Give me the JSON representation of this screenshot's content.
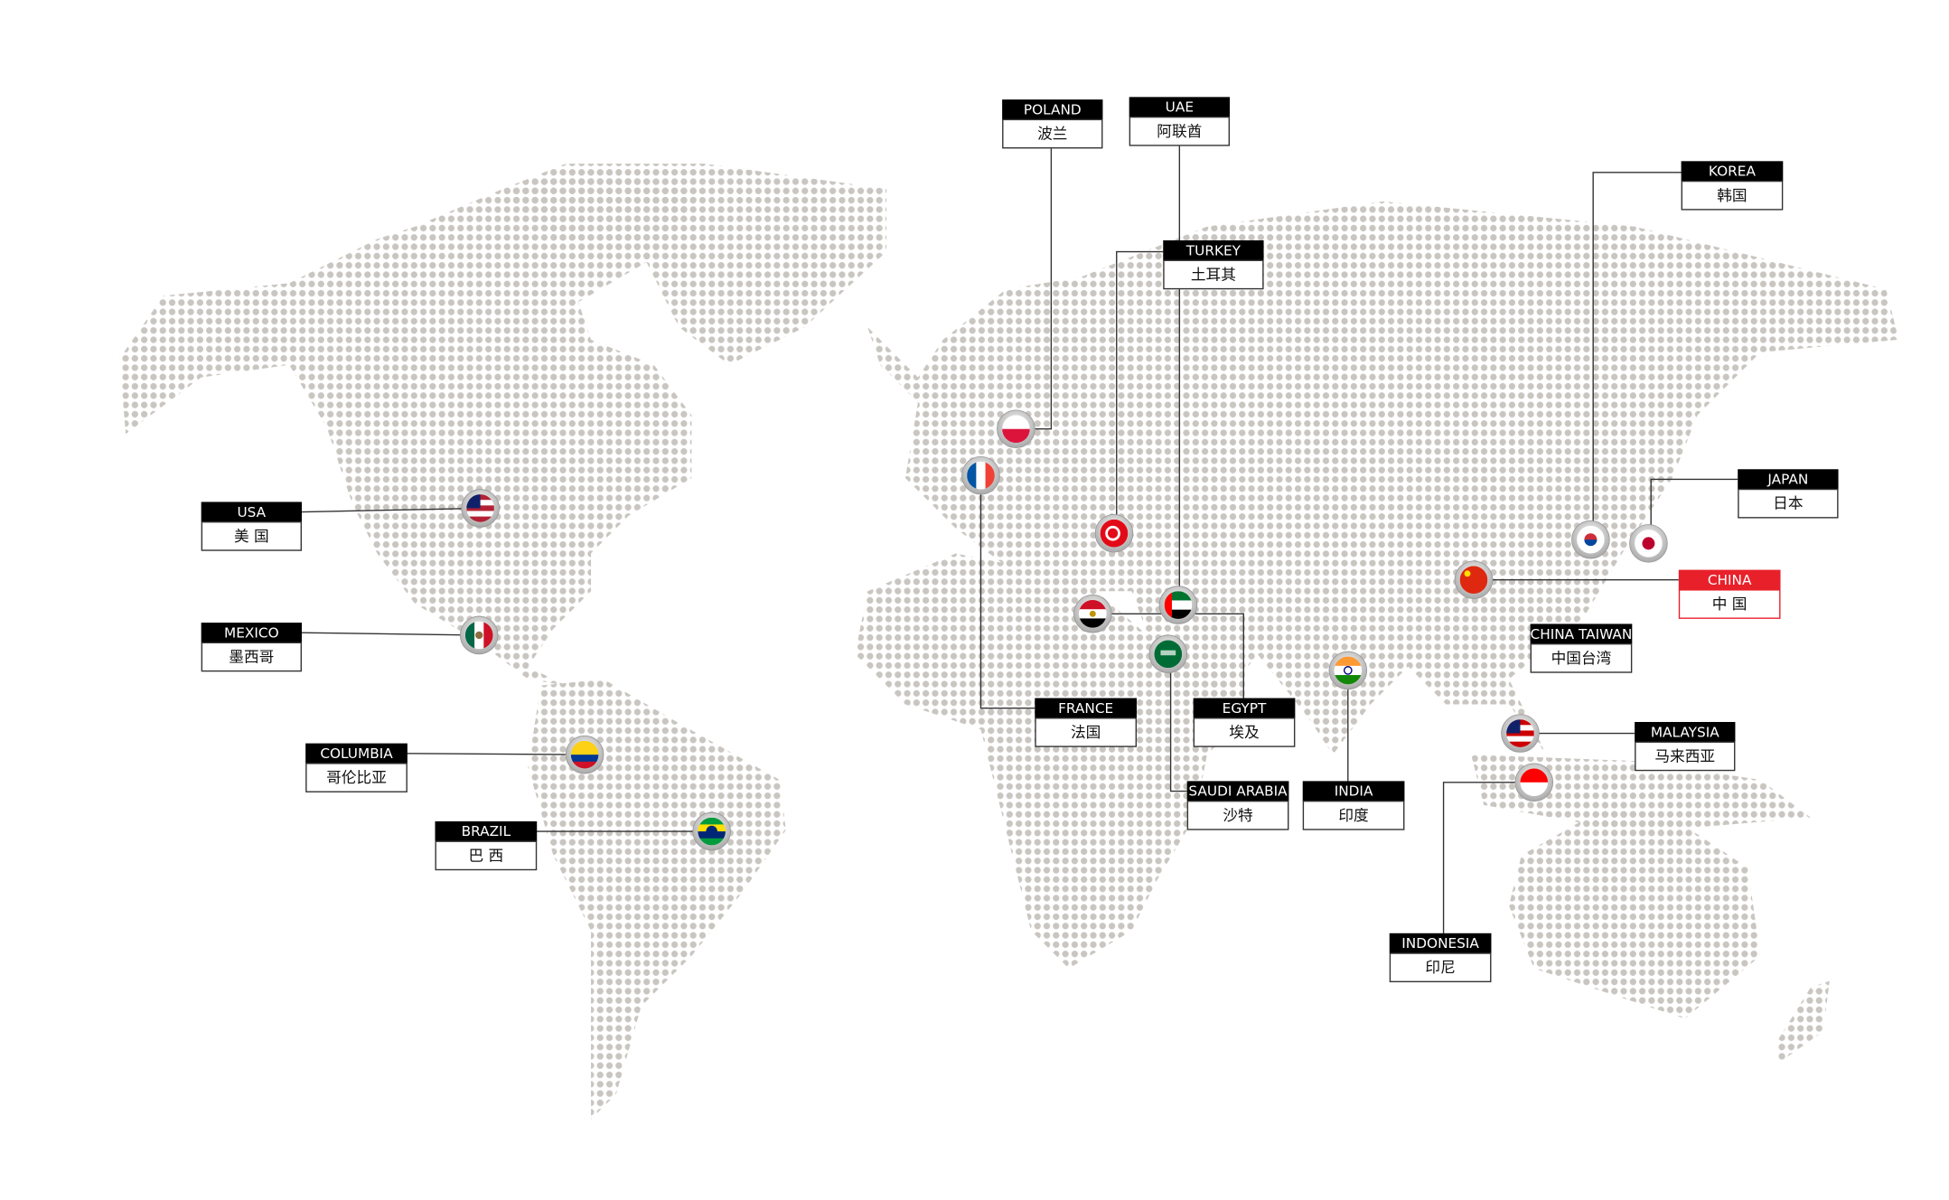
{
  "labels": [
    {
      "en": "USA",
      "zh": "美 国"
    },
    {
      "en": "MEXICO",
      "zh": "墨西哥"
    },
    {
      "en": "COLUMBIA",
      "zh": "哥伦比亚"
    },
    {
      "en": "BRAZIL",
      "zh": "巴 西"
    },
    {
      "en": "POLAND",
      "zh": "波兰"
    },
    {
      "en": "UAE",
      "zh": "阿联酋"
    },
    {
      "en": "TURKEY",
      "zh": "土耳其"
    },
    {
      "en": "KOREA",
      "zh": "韩国"
    },
    {
      "en": "JAPAN",
      "zh": "日本"
    },
    {
      "en": "CHINA",
      "zh": "中 国"
    },
    {
      "en": "CHINA TAIWAN",
      "zh": "中国台湾"
    },
    {
      "en": "FRANCE",
      "zh": "法国"
    },
    {
      "en": "EGYPT",
      "zh": "埃及"
    },
    {
      "en": "SAUDI ARABIA",
      "zh": "沙特"
    },
    {
      "en": "INDIA",
      "zh": "印度"
    },
    {
      "en": "MALAYSIA",
      "zh": "马来西亚"
    },
    {
      "en": "INDONESIA",
      "zh": "印尼"
    }
  ]
}
